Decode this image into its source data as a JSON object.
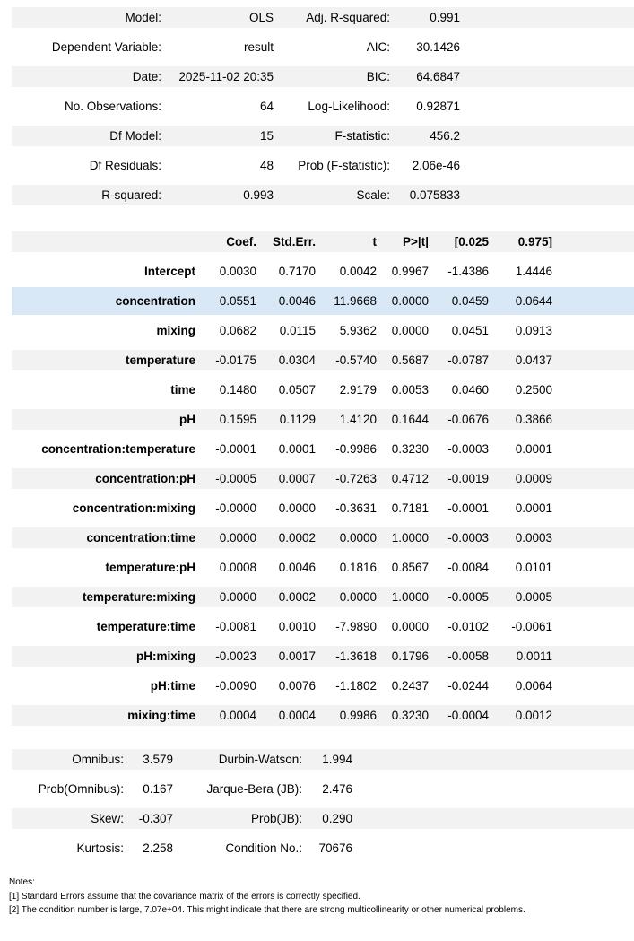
{
  "model_summary": {
    "rows": [
      [
        "Model:",
        "OLS",
        "Adj. R-squared:",
        "0.991"
      ],
      [
        "Dependent Variable:",
        "result",
        "AIC:",
        "30.1426"
      ],
      [
        "Date:",
        "2025-11-02 20:35",
        "BIC:",
        "64.6847"
      ],
      [
        "No. Observations:",
        "64",
        "Log-Likelihood:",
        "0.92871"
      ],
      [
        "Df Model:",
        "15",
        "F-statistic:",
        "456.2"
      ],
      [
        "Df Residuals:",
        "48",
        "Prob (F-statistic):",
        "2.06e-46"
      ],
      [
        "R-squared:",
        "0.993",
        "Scale:",
        "0.075833"
      ]
    ]
  },
  "coefficients": {
    "headers": [
      "",
      "Coef.",
      "Std.Err.",
      "t",
      "P>|t|",
      "[0.025",
      "0.975]"
    ],
    "rows": [
      {
        "label": "Intercept",
        "values": [
          "0.0030",
          "0.7170",
          "0.0042",
          "0.9967",
          "-1.4386",
          "1.4446"
        ],
        "highlight": false
      },
      {
        "label": "concentration",
        "values": [
          "0.0551",
          "0.0046",
          "11.9668",
          "0.0000",
          "0.0459",
          "0.0644"
        ],
        "highlight": true
      },
      {
        "label": "mixing",
        "values": [
          "0.0682",
          "0.0115",
          "5.9362",
          "0.0000",
          "0.0451",
          "0.0913"
        ],
        "highlight": false
      },
      {
        "label": "temperature",
        "values": [
          "-0.0175",
          "0.0304",
          "-0.5740",
          "0.5687",
          "-0.0787",
          "0.0437"
        ],
        "highlight": false
      },
      {
        "label": "time",
        "values": [
          "0.1480",
          "0.0507",
          "2.9179",
          "0.0053",
          "0.0460",
          "0.2500"
        ],
        "highlight": false
      },
      {
        "label": "pH",
        "values": [
          "0.1595",
          "0.1129",
          "1.4120",
          "0.1644",
          "-0.0676",
          "0.3866"
        ],
        "highlight": false
      },
      {
        "label": "concentration:temperature",
        "values": [
          "-0.0001",
          "0.0001",
          "-0.9986",
          "0.3230",
          "-0.0003",
          "0.0001"
        ],
        "highlight": false
      },
      {
        "label": "concentration:pH",
        "values": [
          "-0.0005",
          "0.0007",
          "-0.7263",
          "0.4712",
          "-0.0019",
          "0.0009"
        ],
        "highlight": false
      },
      {
        "label": "concentration:mixing",
        "values": [
          "-0.0000",
          "0.0000",
          "-0.3631",
          "0.7181",
          "-0.0001",
          "0.0001"
        ],
        "highlight": false
      },
      {
        "label": "concentration:time",
        "values": [
          "0.0000",
          "0.0002",
          "0.0000",
          "1.0000",
          "-0.0003",
          "0.0003"
        ],
        "highlight": false
      },
      {
        "label": "temperature:pH",
        "values": [
          "0.0008",
          "0.0046",
          "0.1816",
          "0.8567",
          "-0.0084",
          "0.0101"
        ],
        "highlight": false
      },
      {
        "label": "temperature:mixing",
        "values": [
          "0.0000",
          "0.0002",
          "0.0000",
          "1.0000",
          "-0.0005",
          "0.0005"
        ],
        "highlight": false
      },
      {
        "label": "temperature:time",
        "values": [
          "-0.0081",
          "0.0010",
          "-7.9890",
          "0.0000",
          "-0.0102",
          "-0.0061"
        ],
        "highlight": false
      },
      {
        "label": "pH:mixing",
        "values": [
          "-0.0023",
          "0.0017",
          "-1.3618",
          "0.1796",
          "-0.0058",
          "0.0011"
        ],
        "highlight": false
      },
      {
        "label": "pH:time",
        "values": [
          "-0.0090",
          "0.0076",
          "-1.1802",
          "0.2437",
          "-0.0244",
          "0.0064"
        ],
        "highlight": false
      },
      {
        "label": "mixing:time",
        "values": [
          "0.0004",
          "0.0004",
          "0.9986",
          "0.3230",
          "-0.0004",
          "0.0012"
        ],
        "highlight": false
      }
    ]
  },
  "diagnostics": {
    "rows": [
      [
        "Omnibus:",
        "3.579",
        "Durbin-Watson:",
        "1.994"
      ],
      [
        "Prob(Omnibus):",
        "0.167",
        "Jarque-Bera (JB):",
        "2.476"
      ],
      [
        "Skew:",
        "-0.307",
        "Prob(JB):",
        "0.290"
      ],
      [
        "Kurtosis:",
        "2.258",
        "Condition No.:",
        "70676"
      ]
    ]
  },
  "notes": {
    "title": "Notes:",
    "lines": [
      "[1] Standard Errors assume that the covariance matrix of the errors is correctly specified.",
      "[2] The condition number is large, 7.07e+04. This might indicate that there are strong multicollinearity or other numerical problems."
    ]
  },
  "colors": {
    "stripe": "#f2f2f2",
    "highlight": "#d9e8f6"
  }
}
